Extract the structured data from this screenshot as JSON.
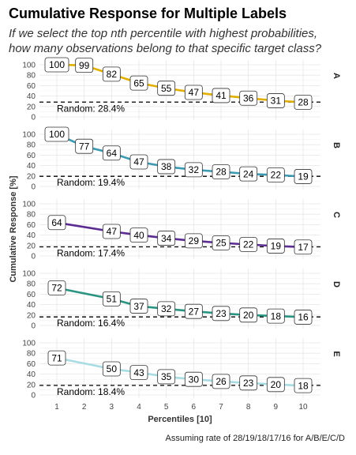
{
  "chart_data": {
    "type": "line",
    "title": "Cumulative Response for Multiple Labels",
    "subtitle_lines": [
      "If we select the top nth percentile with highest probabilities,",
      "how many observations belong to that specific target class?"
    ],
    "xlabel": "Percentiles [10]",
    "ylabel": "Cumulative Response [%]",
    "caption": "Assuming rate of 28/19/18/17/16 for A/B/E/C/D",
    "x": [
      1,
      2,
      3,
      4,
      5,
      6,
      7,
      8,
      9,
      10
    ],
    "ylim": [
      0,
      100
    ],
    "yticks": [
      0,
      20,
      40,
      60,
      80,
      100
    ],
    "grid": true,
    "panels": [
      {
        "name": "A",
        "color": "#E1AF00",
        "values": [
          100,
          99,
          82,
          65,
          55,
          47,
          41,
          36,
          31,
          28
        ],
        "random_value": 28.4,
        "random_label": "Random: 28.4%"
      },
      {
        "name": "B",
        "color": "#3B9AB2",
        "values": [
          100,
          77,
          64,
          47,
          38,
          32,
          28,
          24,
          22,
          19
        ],
        "random_value": 19.4,
        "random_label": "Random: 19.4%"
      },
      {
        "name": "C",
        "color": "#5B2C91",
        "values": [
          64,
          null,
          47,
          40,
          34,
          29,
          25,
          22,
          19,
          17
        ],
        "random_value": 17.4,
        "random_label": "Random: 17.4%"
      },
      {
        "name": "D",
        "color": "#2A9482",
        "values": [
          72,
          null,
          51,
          37,
          32,
          27,
          23,
          20,
          18,
          16
        ],
        "random_value": 16.4,
        "random_label": "Random: 16.4%"
      },
      {
        "name": "E",
        "color": "#A8DCE3",
        "values": [
          71,
          null,
          50,
          43,
          35,
          30,
          26,
          23,
          20,
          18
        ],
        "random_value": 18.4,
        "random_label": "Random: 18.4%"
      }
    ]
  }
}
